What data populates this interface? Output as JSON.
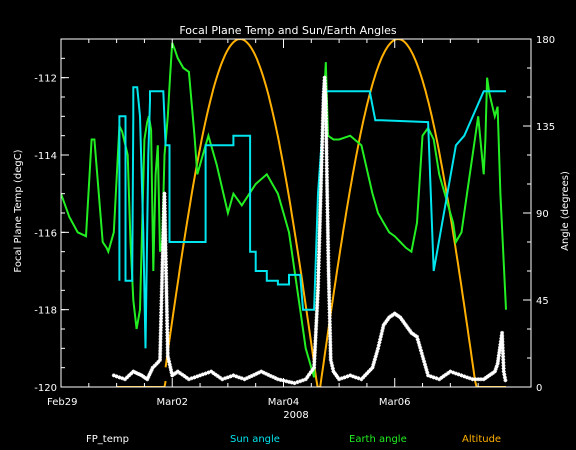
{
  "chart_data": {
    "type": "line",
    "title": "Focal Plane Temp and Sun/Earth Angles",
    "xlabel": "2008",
    "ylabel": "Focal Plane Temp (degC)",
    "y2label": "Angle (degrees)",
    "xlim": [
      0,
      8.45
    ],
    "ylim": [
      -120,
      -111
    ],
    "y2lim": [
      0,
      180
    ],
    "x_ticks": [
      {
        "label": "Feb29",
        "value": 0
      },
      {
        "label": "Mar02",
        "value": 2
      },
      {
        "label": "Mar04",
        "value": 4
      },
      {
        "label": "Mar06",
        "value": 6
      }
    ],
    "y_ticks": [
      "-120",
      "-118",
      "-116",
      "-114",
      "-112"
    ],
    "y2_ticks": [
      "0",
      "45",
      "90",
      "135",
      "180"
    ],
    "colors": {
      "background": "#000000",
      "axes": "#ffffff",
      "fp_temp": "#ffffff",
      "sun_angle": "#00e5ee",
      "earth_angle": "#22ee22",
      "altitude": "#ffb000"
    },
    "series": [
      {
        "name": "FP_temp",
        "axis": "left",
        "marker": "asterisk",
        "x": [
          0.95,
          1.15,
          1.3,
          1.45,
          1.55,
          1.65,
          1.72,
          1.78,
          1.82,
          1.86,
          1.92,
          2.0,
          2.1,
          2.3,
          2.5,
          2.7,
          2.9,
          3.1,
          3.3,
          3.6,
          3.9,
          4.2,
          4.4,
          4.55,
          4.62,
          4.66,
          4.7,
          4.72,
          4.74,
          4.76,
          4.78,
          4.81,
          4.85,
          4.9,
          5.0,
          5.2,
          5.4,
          5.6,
          5.7,
          5.8,
          5.9,
          6.0,
          6.1,
          6.2,
          6.3,
          6.4,
          6.6,
          6.8,
          7.0,
          7.2,
          7.4,
          7.6,
          7.7,
          7.8,
          7.85,
          7.9,
          7.93,
          7.96,
          8.0
        ],
        "values": [
          -119.7,
          -119.8,
          -119.6,
          -119.7,
          -119.8,
          -119.5,
          -119.4,
          -119.3,
          -117.0,
          -115.0,
          -119.2,
          -119.7,
          -119.6,
          -119.8,
          -119.7,
          -119.6,
          -119.8,
          -119.7,
          -119.8,
          -119.6,
          -119.8,
          -119.9,
          -119.8,
          -119.5,
          -117.5,
          -115.5,
          -113.5,
          -112.5,
          -112.0,
          -112.6,
          -114.5,
          -117.0,
          -119.3,
          -119.6,
          -119.8,
          -119.7,
          -119.8,
          -119.5,
          -119.0,
          -118.4,
          -118.2,
          -118.1,
          -118.2,
          -118.4,
          -118.6,
          -118.7,
          -119.7,
          -119.8,
          -119.6,
          -119.7,
          -119.8,
          -119.8,
          -119.7,
          -119.6,
          -119.4,
          -118.9,
          -118.6,
          -119.6,
          -119.9
        ]
      },
      {
        "name": "Sun angle",
        "axis": "right",
        "x": [
          1.05,
          1.05,
          1.16,
          1.16,
          1.28,
          1.3,
          1.3,
          1.37,
          1.42,
          1.48,
          1.52,
          1.57,
          1.6,
          1.6,
          1.65,
          1.73,
          1.78,
          1.84,
          1.88,
          1.95,
          1.95,
          2.0,
          2.6,
          2.6,
          2.8,
          2.8,
          3.1,
          3.1,
          3.4,
          3.4,
          3.5,
          3.5,
          3.7,
          3.7,
          3.9,
          3.9,
          4.1,
          4.1,
          4.2,
          4.3,
          4.35,
          4.55,
          4.62,
          4.75,
          4.78,
          4.85,
          4.87,
          5.55,
          5.55,
          5.65,
          5.65,
          5.75,
          5.75,
          6.6,
          6.6,
          6.7,
          6.7,
          7.1,
          7.1,
          7.25,
          7.25,
          7.6,
          7.6,
          7.8,
          7.8,
          8.0
        ],
        "values": [
          55,
          140,
          140,
          55,
          55,
          140,
          155,
          155,
          140,
          80,
          20,
          120,
          148,
          153,
          153,
          153,
          153,
          153,
          125,
          125,
          75,
          75,
          75,
          125,
          125,
          125,
          125,
          130,
          130,
          70,
          70,
          60,
          60,
          55,
          55,
          53,
          53,
          58,
          58,
          58,
          40,
          40,
          100,
          153,
          153,
          153,
          153,
          153,
          153,
          138,
          138,
          138,
          138,
          137,
          137,
          60,
          60,
          125,
          125,
          130,
          130,
          153,
          153,
          153,
          153,
          153
        ]
      },
      {
        "name": "Earth angle",
        "axis": "right",
        "x": [
          0,
          0.15,
          0.3,
          0.45,
          0.55,
          0.6,
          0.75,
          0.82,
          0.85,
          0.95,
          1.05,
          1.1,
          1.2,
          1.25,
          1.3,
          1.36,
          1.42,
          1.5,
          1.55,
          1.58,
          1.62,
          1.66,
          1.7,
          1.74,
          1.78,
          1.82,
          1.86,
          1.92,
          1.96,
          2.0,
          2.04,
          2.1,
          2.2,
          2.3,
          2.4,
          2.45,
          2.55,
          2.65,
          2.8,
          3.0,
          3.1,
          3.25,
          3.5,
          3.7,
          3.9,
          4.0,
          4.1,
          4.2,
          4.3,
          4.4,
          4.55,
          4.62,
          4.66,
          4.7,
          4.73,
          4.76,
          4.8,
          4.9,
          5.0,
          5.2,
          5.4,
          5.6,
          5.65,
          5.7,
          5.8,
          5.9,
          6.0,
          6.1,
          6.2,
          6.3,
          6.4,
          6.5,
          6.6,
          6.7,
          6.8,
          6.9,
          7.0,
          7.05,
          7.1,
          7.2,
          7.3,
          7.4,
          7.5,
          7.6,
          7.63,
          7.66,
          7.7,
          7.8,
          7.85,
          7.9,
          7.95,
          8.0
        ],
        "values": [
          100,
          88,
          80,
          78,
          128,
          128,
          75,
          72,
          70,
          80,
          135,
          132,
          120,
          75,
          45,
          30,
          40,
          128,
          137,
          140,
          133,
          60,
          110,
          125,
          70,
          75,
          120,
          140,
          160,
          178,
          175,
          170,
          165,
          163,
          130,
          110,
          120,
          130,
          115,
          90,
          100,
          94,
          105,
          110,
          100,
          90,
          80,
          60,
          40,
          20,
          5,
          60,
          100,
          130,
          150,
          168,
          130,
          128,
          128,
          130,
          125,
          100,
          95,
          90,
          85,
          80,
          78,
          75,
          72,
          70,
          85,
          130,
          134,
          128,
          110,
          100,
          90,
          85,
          75,
          80,
          100,
          120,
          140,
          110,
          128,
          160,
          152,
          140,
          145,
          100,
          70,
          40
        ]
      },
      {
        "name": "Altitude",
        "axis": "right",
        "curve": [
          {
            "x0": 1.0,
            "x1": 1.88,
            "peak": 3.72,
            "period": 3.72
          },
          {
            "x0": 1.88,
            "x1": 4.66,
            "peak": 3.22,
            "period": 2.78
          },
          {
            "x0": 4.66,
            "x1": 8.0,
            "peak": 6.06,
            "period": 2.8
          }
        ],
        "peak_value": 180
      }
    ],
    "legend": {
      "position": "bottom",
      "items": [
        {
          "label": "FP_temp",
          "color": "#ffffff"
        },
        {
          "label": "Sun angle",
          "color": "#00e5ee"
        },
        {
          "label": "Earth angle",
          "color": "#22ee22"
        },
        {
          "label": "Altitude",
          "color": "#ffb000"
        }
      ]
    }
  }
}
